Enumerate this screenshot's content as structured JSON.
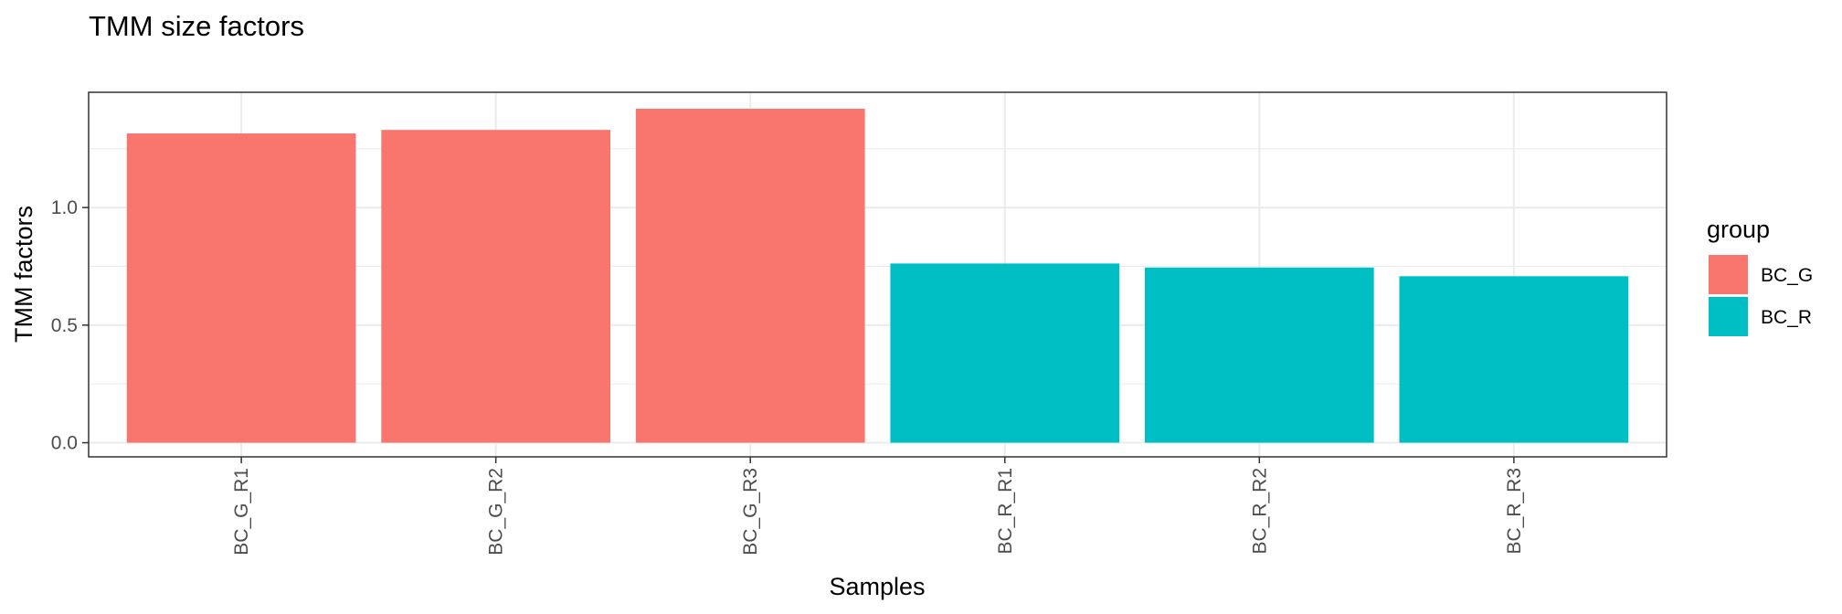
{
  "chart_data": {
    "type": "bar",
    "title": "TMM size factors",
    "xlabel": "Samples",
    "ylabel": "TMM factors",
    "categories": [
      "BC_G_R1",
      "BC_G_R2",
      "BC_G_R3",
      "BC_R_R1",
      "BC_R_R2",
      "BC_R_R3"
    ],
    "values": [
      1.315,
      1.33,
      1.42,
      0.762,
      0.745,
      0.708
    ],
    "groups": [
      "BC_G",
      "BC_G",
      "BC_G",
      "BC_R",
      "BC_R",
      "BC_R"
    ],
    "ylim": [
      -0.06,
      1.49
    ],
    "yticks": [
      0.0,
      0.5,
      1.0
    ],
    "ytick_labels": [
      "0.0",
      "0.5",
      "1.0"
    ],
    "grid": true,
    "legend": {
      "title": "group",
      "position": "right",
      "entries": [
        {
          "label": "BC_G",
          "color": "#F8766D"
        },
        {
          "label": "BC_R",
          "color": "#00BFC4"
        }
      ]
    }
  }
}
